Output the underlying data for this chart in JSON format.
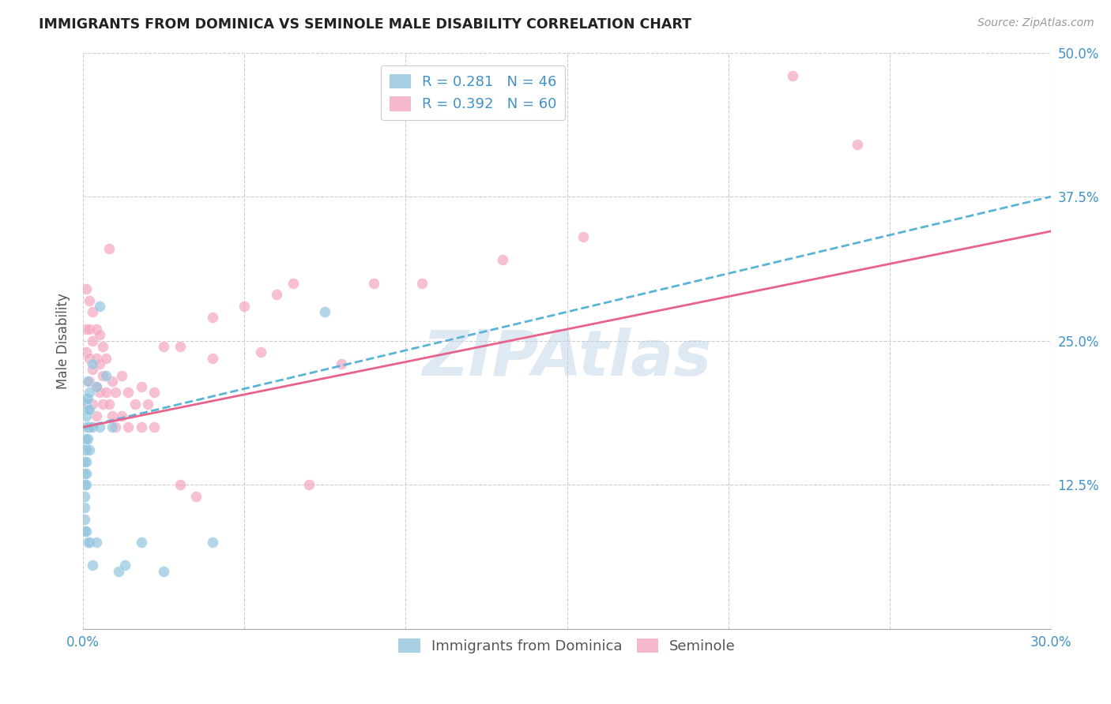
{
  "title": "IMMIGRANTS FROM DOMINICA VS SEMINOLE MALE DISABILITY CORRELATION CHART",
  "source": "Source: ZipAtlas.com",
  "xlabel_label": "Immigrants from Dominica",
  "ylabel_label": "Male Disability",
  "x_min": 0.0,
  "x_max": 0.3,
  "y_min": 0.0,
  "y_max": 0.5,
  "x_ticks": [
    0.0,
    0.05,
    0.1,
    0.15,
    0.2,
    0.25,
    0.3
  ],
  "x_tick_labels_bottom": [
    "0.0%",
    "",
    "",
    "",
    "",
    "",
    "30.0%"
  ],
  "y_ticks": [
    0.0,
    0.125,
    0.25,
    0.375,
    0.5
  ],
  "y_tick_labels_right": [
    "",
    "12.5%",
    "25.0%",
    "37.5%",
    "50.0%"
  ],
  "legend_r1": "R = 0.281",
  "legend_n1": "N = 46",
  "legend_r2": "R = 0.392",
  "legend_n2": "N = 60",
  "color_blue": "#92c5de",
  "color_pink": "#f4a6c0",
  "color_trendline_blue": "#5ab4d6",
  "color_trendline_pink": "#e8638c",
  "watermark_text": "ZIPAtlas",
  "dominica_x": [
    0.0005,
    0.0005,
    0.0005,
    0.0005,
    0.0005,
    0.0005,
    0.0005,
    0.0005,
    0.0005,
    0.0005,
    0.001,
    0.001,
    0.001,
    0.001,
    0.001,
    0.001,
    0.001,
    0.001,
    0.001,
    0.001,
    0.0015,
    0.0015,
    0.0015,
    0.0015,
    0.0015,
    0.0015,
    0.002,
    0.002,
    0.002,
    0.002,
    0.002,
    0.003,
    0.003,
    0.003,
    0.004,
    0.004,
    0.005,
    0.005,
    0.007,
    0.009,
    0.011,
    0.013,
    0.018,
    0.025,
    0.04,
    0.075
  ],
  "dominica_y": [
    0.165,
    0.16,
    0.155,
    0.145,
    0.135,
    0.125,
    0.115,
    0.105,
    0.095,
    0.085,
    0.2,
    0.195,
    0.185,
    0.175,
    0.165,
    0.155,
    0.145,
    0.135,
    0.125,
    0.085,
    0.215,
    0.2,
    0.19,
    0.175,
    0.165,
    0.075,
    0.205,
    0.19,
    0.175,
    0.155,
    0.075,
    0.23,
    0.175,
    0.055,
    0.21,
    0.075,
    0.28,
    0.175,
    0.22,
    0.175,
    0.05,
    0.055,
    0.075,
    0.05,
    0.075,
    0.275
  ],
  "seminole_x": [
    0.001,
    0.001,
    0.001,
    0.001,
    0.001,
    0.002,
    0.002,
    0.002,
    0.002,
    0.002,
    0.003,
    0.003,
    0.003,
    0.003,
    0.004,
    0.004,
    0.004,
    0.004,
    0.005,
    0.005,
    0.005,
    0.006,
    0.006,
    0.006,
    0.007,
    0.007,
    0.008,
    0.008,
    0.009,
    0.009,
    0.01,
    0.01,
    0.012,
    0.012,
    0.014,
    0.014,
    0.016,
    0.018,
    0.018,
    0.02,
    0.022,
    0.022,
    0.025,
    0.03,
    0.03,
    0.035,
    0.04,
    0.04,
    0.05,
    0.055,
    0.06,
    0.065,
    0.07,
    0.08,
    0.09,
    0.105,
    0.13,
    0.155,
    0.22,
    0.24
  ],
  "seminole_y": [
    0.295,
    0.26,
    0.24,
    0.195,
    0.175,
    0.285,
    0.26,
    0.235,
    0.215,
    0.175,
    0.275,
    0.25,
    0.225,
    0.195,
    0.26,
    0.235,
    0.21,
    0.185,
    0.255,
    0.23,
    0.205,
    0.245,
    0.22,
    0.195,
    0.235,
    0.205,
    0.33,
    0.195,
    0.215,
    0.185,
    0.205,
    0.175,
    0.22,
    0.185,
    0.205,
    0.175,
    0.195,
    0.21,
    0.175,
    0.195,
    0.205,
    0.175,
    0.245,
    0.245,
    0.125,
    0.115,
    0.27,
    0.235,
    0.28,
    0.24,
    0.29,
    0.3,
    0.125,
    0.23,
    0.3,
    0.3,
    0.32,
    0.34,
    0.48,
    0.42
  ],
  "trendline_blue_x0": 0.0,
  "trendline_blue_y0": 0.175,
  "trendline_blue_x1": 0.3,
  "trendline_blue_y1": 0.375,
  "trendline_pink_x0": 0.0,
  "trendline_pink_y0": 0.175,
  "trendline_pink_x1": 0.3,
  "trendline_pink_y1": 0.345
}
